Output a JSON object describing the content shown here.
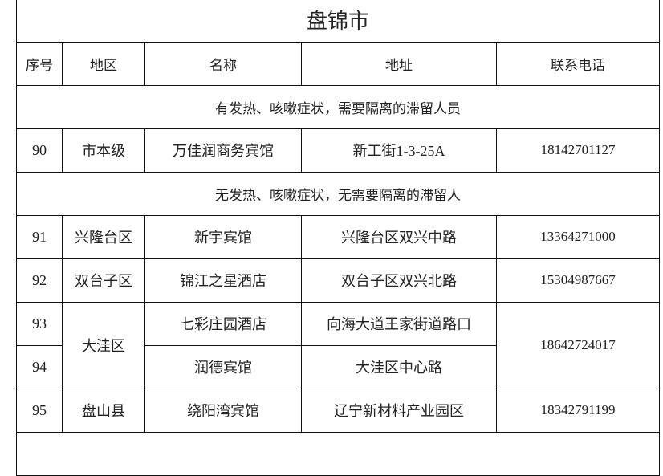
{
  "title": "盘锦市",
  "headers": [
    "序号",
    "地区",
    "名称",
    "地址",
    "联系电话"
  ],
  "sections": [
    "有发热、咳嗽症状，需要隔离的滞留人员",
    "无发热、咳嗽症状，无需要隔离的滞留人"
  ],
  "rows": [
    {
      "no": "90",
      "area": "市本级",
      "name": "万佳润商务宾馆",
      "address": "新工街1-3-25A",
      "phone": "18142701127"
    },
    {
      "no": "91",
      "area": "兴隆台区",
      "name": "新宇宾馆",
      "address": "兴隆台区双兴中路",
      "phone": "13364271000"
    },
    {
      "no": "92",
      "area": "双台子区",
      "name": "锦江之星酒店",
      "address": "双台子区双兴北路",
      "phone": "15304987667"
    },
    {
      "no": "93",
      "area": "大洼区",
      "name": "七彩庄园酒店",
      "address": "向海大道王家街道路口",
      "phone": "18642724017"
    },
    {
      "no": "94",
      "area": "大洼区",
      "name": "润德宾馆",
      "address": "大洼区中心路",
      "phone": "18642724017"
    },
    {
      "no": "95",
      "area": "盘山县",
      "name": "绕阳湾宾馆",
      "address": "辽宁新材料产业园区",
      "phone": "18342791199"
    }
  ]
}
